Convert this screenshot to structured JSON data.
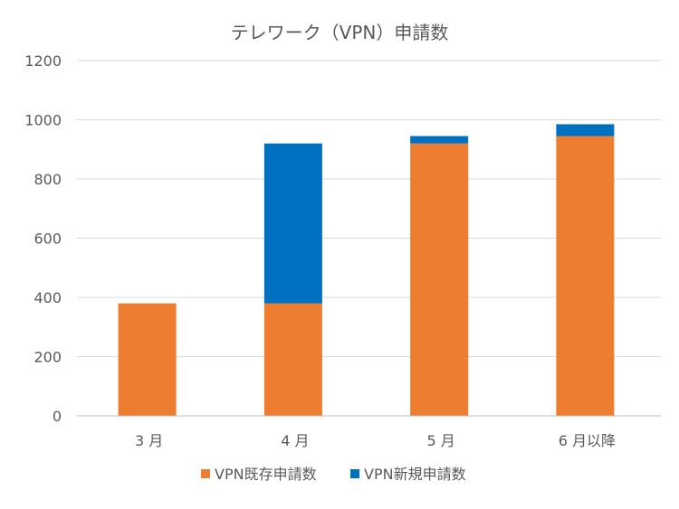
{
  "chart_data": {
    "type": "bar",
    "stacked": true,
    "title": "テレワーク（VPN）申請数",
    "categories": [
      "3 月",
      "4 月",
      "5 月",
      "6 月以降"
    ],
    "series": [
      {
        "name": "VPN既存申請数",
        "color": "#ED7D31",
        "values": [
          380,
          380,
          920,
          945
        ]
      },
      {
        "name": "VPN新規申請数",
        "color": "#0070C0",
        "values": [
          0,
          540,
          25,
          40
        ]
      }
    ],
    "xlabel": "",
    "ylabel": "",
    "ylim": [
      0,
      1200
    ],
    "yticks": [
      0,
      200,
      400,
      600,
      800,
      1000,
      1200
    ],
    "grid": true,
    "legend_position": "bottom"
  }
}
